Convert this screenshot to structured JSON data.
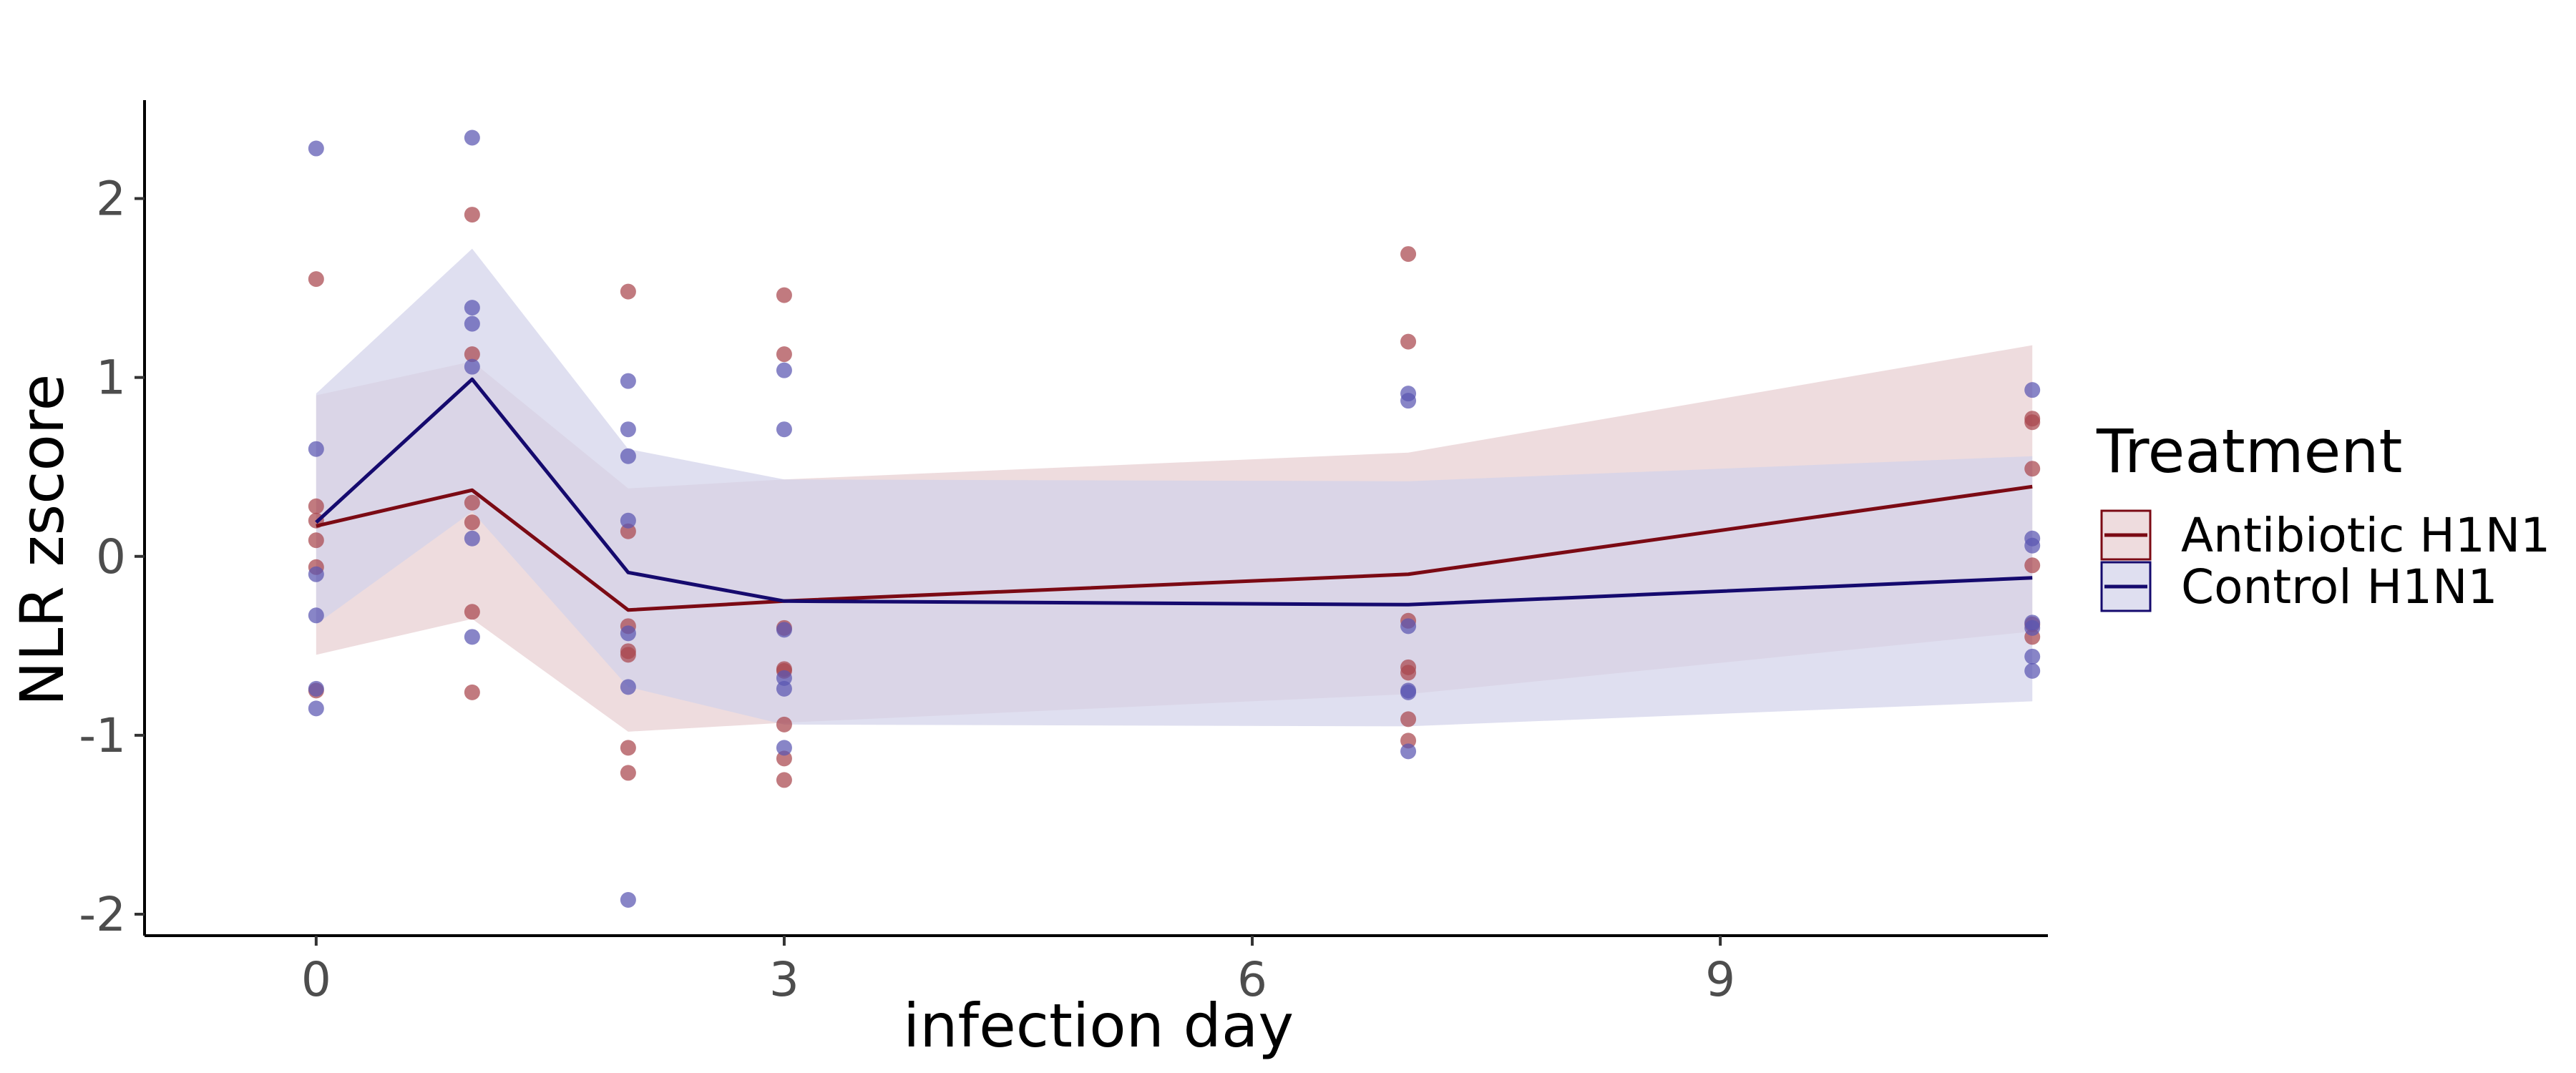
{
  "chart_data": {
    "type": "line",
    "xlabel": "infection day",
    "ylabel": "NLR zscore",
    "xlim": [
      -1.1,
      11.1
    ],
    "ylim": [
      -2.12,
      2.55
    ],
    "xticks": [
      0,
      3,
      6,
      9
    ],
    "xtick_labels": [
      "0",
      "3",
      "6",
      "9"
    ],
    "yticks": [
      -2,
      -1,
      0,
      1,
      2
    ],
    "ytick_labels": [
      "-2",
      "-1",
      "0",
      "1",
      "2"
    ],
    "grid": false,
    "legend": {
      "title": "Treatment",
      "position": "right",
      "entries": [
        "Antibiotic H1N1",
        "Control H1N1"
      ]
    },
    "series": [
      {
        "name": "Antibiotic H1N1",
        "color": "#7b0a14",
        "band_color": "#e8cfd1",
        "point_color": "#a9474e",
        "x": [
          0,
          1,
          2,
          3,
          7,
          11
        ],
        "mean": [
          0.17,
          0.37,
          -0.3,
          -0.25,
          -0.1,
          0.39
        ],
        "lower": [
          -0.55,
          -0.35,
          -0.98,
          -0.93,
          -0.77,
          -0.42
        ],
        "upper": [
          0.9,
          1.09,
          0.38,
          0.43,
          0.58,
          1.18
        ],
        "points": [
          [
            0,
            1.55
          ],
          [
            0,
            0.28
          ],
          [
            0,
            0.2
          ],
          [
            0,
            0.09
          ],
          [
            0,
            -0.06
          ],
          [
            0,
            -0.75
          ],
          [
            1,
            1.91
          ],
          [
            1,
            1.13
          ],
          [
            1,
            0.3
          ],
          [
            1,
            0.19
          ],
          [
            1,
            -0.31
          ],
          [
            1,
            -0.76
          ],
          [
            2,
            1.48
          ],
          [
            2,
            0.14
          ],
          [
            2,
            -0.39
          ],
          [
            2,
            -0.53
          ],
          [
            2,
            -0.55
          ],
          [
            2,
            -1.07
          ],
          [
            2,
            -1.21
          ],
          [
            3,
            1.46
          ],
          [
            3,
            1.13
          ],
          [
            3,
            -0.4
          ],
          [
            3,
            -0.63
          ],
          [
            3,
            -0.64
          ],
          [
            3,
            -0.94
          ],
          [
            3,
            -1.13
          ],
          [
            3,
            -1.25
          ],
          [
            7,
            1.69
          ],
          [
            7,
            1.2
          ],
          [
            7,
            -0.36
          ],
          [
            7,
            -0.62
          ],
          [
            7,
            -0.65
          ],
          [
            7,
            -0.91
          ],
          [
            7,
            -1.03
          ],
          [
            11,
            0.77
          ],
          [
            11,
            0.75
          ],
          [
            11,
            0.49
          ],
          [
            11,
            -0.05
          ],
          [
            11,
            -0.38
          ],
          [
            11,
            -0.45
          ]
        ]
      },
      {
        "name": "Control H1N1",
        "color": "#150a6e",
        "band_color": "#d2d2ea",
        "point_color": "#5a56b2",
        "x": [
          0,
          1,
          2,
          3,
          7,
          11
        ],
        "mean": [
          0.19,
          0.99,
          -0.09,
          -0.25,
          -0.27,
          -0.12
        ],
        "lower": [
          -0.38,
          0.25,
          -0.73,
          -0.94,
          -0.95,
          -0.81
        ],
        "upper": [
          0.91,
          1.72,
          0.6,
          0.43,
          0.42,
          0.56
        ],
        "points": [
          [
            0,
            2.28
          ],
          [
            0,
            0.6
          ],
          [
            0,
            -0.1
          ],
          [
            0,
            -0.33
          ],
          [
            0,
            -0.74
          ],
          [
            0,
            -0.85
          ],
          [
            1,
            2.34
          ],
          [
            1,
            1.39
          ],
          [
            1,
            1.3
          ],
          [
            1,
            1.06
          ],
          [
            1,
            0.1
          ],
          [
            1,
            -0.45
          ],
          [
            2,
            0.98
          ],
          [
            2,
            0.71
          ],
          [
            2,
            0.56
          ],
          [
            2,
            0.2
          ],
          [
            2,
            -0.43
          ],
          [
            2,
            -0.73
          ],
          [
            2,
            -1.92
          ],
          [
            3,
            1.04
          ],
          [
            3,
            0.71
          ],
          [
            3,
            -0.41
          ],
          [
            3,
            -0.68
          ],
          [
            3,
            -0.74
          ],
          [
            3,
            -1.07
          ],
          [
            7,
            0.91
          ],
          [
            7,
            0.87
          ],
          [
            7,
            -0.39
          ],
          [
            7,
            -0.75
          ],
          [
            7,
            -0.76
          ],
          [
            7,
            -1.09
          ],
          [
            11,
            0.93
          ],
          [
            11,
            0.1
          ],
          [
            11,
            0.06
          ],
          [
            11,
            -0.37
          ],
          [
            11,
            -0.4
          ],
          [
            11,
            -0.56
          ],
          [
            11,
            -0.64
          ]
        ]
      }
    ]
  }
}
